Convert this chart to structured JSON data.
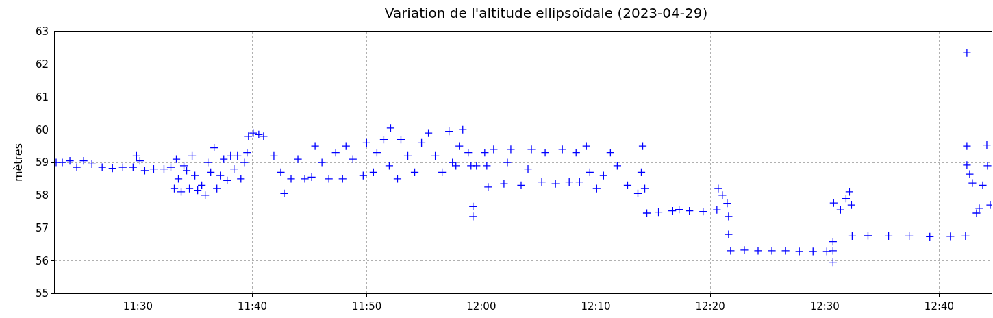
{
  "chart_data": {
    "type": "scatter",
    "title": "Variation de l'altitude ellipsoïdale (2023-04-29)",
    "ylabel": "mètres",
    "xlim": [
      11.379,
      12.743
    ],
    "ylim": [
      55,
      63
    ],
    "xticks": [
      {
        "value": 11.5,
        "label": "11:30"
      },
      {
        "value": 11.6667,
        "label": "11:40"
      },
      {
        "value": 11.8333,
        "label": "11:50"
      },
      {
        "value": 12.0,
        "label": "12:00"
      },
      {
        "value": 12.1667,
        "label": "12:10"
      },
      {
        "value": 12.3333,
        "label": "12:20"
      },
      {
        "value": 12.5,
        "label": "12:30"
      },
      {
        "value": 12.6667,
        "label": "12:40"
      }
    ],
    "yticks": [
      55,
      56,
      57,
      58,
      59,
      60,
      61,
      62,
      63
    ],
    "grid": true,
    "marker": "cross",
    "series": [
      {
        "color": "#0000ff",
        "x": [
          11.381,
          11.39,
          11.401,
          11.411,
          11.421,
          11.433,
          11.448,
          11.463,
          11.478,
          11.493,
          11.498,
          11.503,
          11.51,
          11.523,
          11.538,
          11.548,
          11.553,
          11.556,
          11.559,
          11.563,
          11.567,
          11.571,
          11.575,
          11.579,
          11.583,
          11.587,
          11.593,
          11.598,
          11.602,
          11.606,
          11.611,
          11.615,
          11.62,
          11.625,
          11.63,
          11.635,
          11.64,
          11.645,
          11.65,
          11.655,
          11.659,
          11.661,
          11.668,
          11.676,
          11.683,
          11.698,
          11.708,
          11.713,
          11.723,
          11.733,
          11.743,
          11.753,
          11.758,
          11.768,
          11.778,
          11.788,
          11.798,
          11.803,
          11.813,
          11.828,
          11.833,
          11.843,
          11.848,
          11.858,
          11.866,
          11.868,
          11.878,
          11.883,
          11.893,
          11.903,
          11.913,
          11.923,
          11.933,
          11.943,
          11.953,
          11.958,
          11.963,
          11.968,
          11.973,
          11.981,
          11.985,
          11.988,
          11.988,
          11.993,
          12.005,
          12.008,
          12.01,
          12.018,
          12.033,
          12.038,
          12.043,
          12.058,
          12.068,
          12.073,
          12.088,
          12.093,
          12.108,
          12.118,
          12.128,
          12.138,
          12.143,
          12.153,
          12.158,
          12.168,
          12.178,
          12.188,
          12.198,
          12.213,
          12.228,
          12.233,
          12.235,
          12.238,
          12.241,
          12.258,
          12.278,
          12.288,
          12.303,
          12.323,
          12.343,
          12.345,
          12.351,
          12.358,
          12.36,
          12.36,
          12.363,
          12.383,
          12.403,
          12.423,
          12.443,
          12.463,
          12.483,
          12.503,
          12.512,
          12.512,
          12.512,
          12.513,
          12.523,
          12.531,
          12.536,
          12.539,
          12.54,
          12.563,
          12.593,
          12.623,
          12.653,
          12.683,
          12.705,
          12.707,
          12.707,
          12.707,
          12.711,
          12.715,
          12.721,
          12.725,
          12.73,
          12.736,
          12.737,
          12.741
        ],
        "values": [
          59.0,
          59.0,
          59.05,
          58.85,
          59.05,
          58.95,
          58.85,
          58.82,
          58.85,
          58.85,
          59.2,
          59.05,
          58.75,
          58.8,
          58.8,
          58.85,
          58.2,
          59.1,
          58.5,
          58.1,
          58.9,
          58.75,
          58.2,
          59.2,
          58.6,
          58.15,
          58.3,
          58.0,
          59.0,
          58.7,
          59.45,
          58.2,
          58.6,
          59.1,
          58.45,
          59.2,
          58.8,
          59.2,
          58.5,
          59.0,
          59.3,
          59.8,
          59.9,
          59.85,
          59.8,
          59.2,
          58.7,
          58.05,
          58.5,
          59.1,
          58.5,
          58.55,
          59.5,
          59.0,
          58.5,
          59.3,
          58.5,
          59.5,
          59.1,
          58.6,
          59.6,
          58.7,
          59.3,
          59.7,
          58.9,
          60.05,
          58.5,
          59.7,
          59.2,
          58.7,
          59.6,
          59.9,
          59.2,
          58.7,
          59.95,
          59.0,
          58.9,
          59.5,
          60.0,
          59.3,
          58.9,
          57.65,
          57.35,
          58.9,
          59.3,
          58.9,
          58.25,
          59.4,
          58.35,
          59.0,
          59.4,
          58.3,
          58.8,
          59.4,
          58.4,
          59.3,
          58.35,
          59.4,
          58.4,
          59.3,
          58.4,
          59.5,
          58.7,
          58.2,
          58.6,
          59.3,
          58.9,
          58.3,
          58.05,
          58.7,
          59.5,
          58.2,
          57.45,
          57.48,
          57.52,
          57.56,
          57.52,
          57.5,
          57.55,
          58.2,
          58.0,
          57.75,
          57.35,
          56.8,
          56.3,
          56.32,
          56.3,
          56.3,
          56.3,
          56.28,
          56.28,
          56.28,
          56.3,
          56.58,
          55.95,
          57.76,
          57.55,
          57.9,
          58.1,
          57.7,
          56.75,
          56.76,
          56.75,
          56.75,
          56.73,
          56.74,
          56.75,
          62.35,
          59.5,
          58.92,
          58.64,
          58.37,
          57.45,
          57.6,
          58.3,
          59.53,
          58.9,
          57.7
        ]
      }
    ]
  }
}
